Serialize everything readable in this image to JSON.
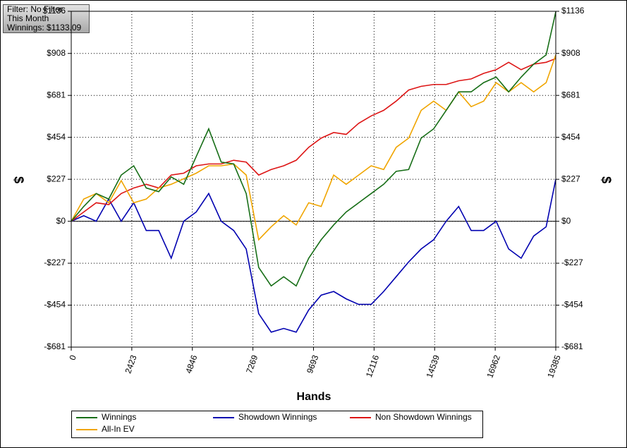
{
  "chart_data": {
    "type": "line",
    "annotations": [
      "Filter: No Filter",
      "This Month",
      "Winnings: $1133.09"
    ],
    "xlabel": "Hands",
    "ylabel": "$",
    "x": [
      0,
      500,
      1000,
      1500,
      2000,
      2500,
      3000,
      3500,
      4000,
      4500,
      5000,
      5500,
      6000,
      6500,
      7000,
      7500,
      8000,
      8500,
      9000,
      9500,
      10000,
      10500,
      11000,
      11500,
      12000,
      12500,
      13000,
      13500,
      14000,
      14500,
      15000,
      15500,
      16000,
      16500,
      17000,
      17500,
      18000,
      18500,
      19000,
      19385
    ],
    "series": [
      {
        "name": "Winnings",
        "color": "#176e17",
        "values": [
          0,
          80,
          150,
          120,
          250,
          300,
          180,
          160,
          240,
          200,
          350,
          500,
          320,
          310,
          150,
          -250,
          -350,
          -300,
          -350,
          -200,
          -100,
          -20,
          50,
          100,
          150,
          200,
          270,
          280,
          450,
          500,
          600,
          700,
          700,
          750,
          780,
          700,
          780,
          850,
          900,
          1133
        ]
      },
      {
        "name": "Showdown Winnings",
        "color": "#0000b0",
        "values": [
          0,
          30,
          0,
          120,
          0,
          100,
          -50,
          -50,
          -200,
          0,
          50,
          150,
          0,
          -50,
          -150,
          -500,
          -600,
          -580,
          -600,
          -480,
          -400,
          -380,
          -420,
          -450,
          -450,
          -380,
          -300,
          -220,
          -150,
          -100,
          0,
          80,
          -50,
          -50,
          0,
          -150,
          -200,
          -80,
          -30,
          227
        ]
      },
      {
        "name": "Non Showdown Winnings",
        "color": "#dd1515",
        "values": [
          0,
          50,
          100,
          90,
          150,
          180,
          200,
          180,
          250,
          260,
          300,
          310,
          310,
          330,
          320,
          250,
          280,
          300,
          330,
          400,
          450,
          480,
          470,
          530,
          570,
          600,
          650,
          710,
          730,
          740,
          740,
          760,
          770,
          800,
          820,
          860,
          820,
          850,
          860,
          880
        ]
      },
      {
        "name": "All-In EV",
        "color": "#f0a500",
        "values": [
          0,
          120,
          150,
          100,
          220,
          100,
          120,
          180,
          200,
          230,
          260,
          300,
          300,
          310,
          250,
          -100,
          -30,
          30,
          -20,
          100,
          80,
          250,
          200,
          250,
          300,
          280,
          400,
          450,
          600,
          650,
          600,
          700,
          620,
          650,
          750,
          700,
          750,
          700,
          750,
          900
        ]
      }
    ],
    "xlim": [
      0,
      19385
    ],
    "xticks": [
      0,
      2423,
      4846,
      7269,
      9693,
      12116,
      14539,
      16962,
      19385
    ],
    "ylim": [
      -681,
      1136
    ],
    "yticks": [
      {
        "value": -681,
        "label": "-$681"
      },
      {
        "value": -454,
        "label": "-$454"
      },
      {
        "value": -227,
        "label": "-$227"
      },
      {
        "value": 0,
        "label": "$0"
      },
      {
        "value": 227,
        "label": "$227"
      },
      {
        "value": 454,
        "label": "$454"
      },
      {
        "value": 681,
        "label": "$681"
      },
      {
        "value": 908,
        "label": "$908"
      },
      {
        "value": 1136,
        "label": "$1136"
      }
    ],
    "grid": true
  }
}
